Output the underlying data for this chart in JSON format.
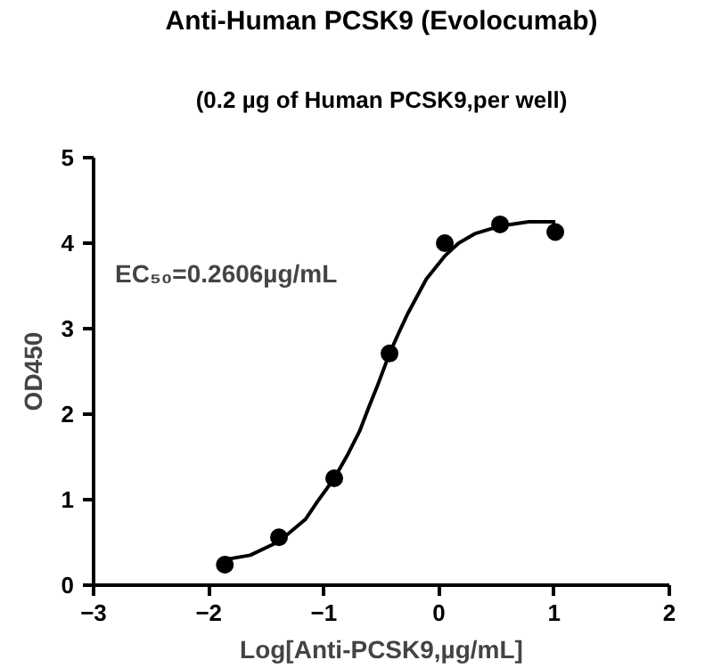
{
  "chart_data": {
    "type": "scatter",
    "title": "Anti-Human PCSK9 (Evolocumab)",
    "subtitle": "(0.2 µg of Human PCSK9,per well)",
    "xlabel": "Log[Anti-PCSK9,µg/mL]",
    "ylabel": "OD450",
    "annotations": [
      "EC₅₀=0.2606µg/mL"
    ],
    "xlim": [
      -3,
      2
    ],
    "xticks": [
      -3,
      -2,
      -1,
      0,
      1,
      2
    ],
    "ylim": [
      0,
      5
    ],
    "yticks": [
      0,
      1,
      2,
      3,
      4,
      5
    ],
    "grid": false,
    "series": [
      {
        "marker": "circle",
        "color": "#000000",
        "x": [
          -1.86,
          -1.39,
          -0.91,
          -0.43,
          0.05,
          0.53,
          1.01
        ],
        "values": [
          0.24,
          0.56,
          1.25,
          2.71,
          4.0,
          4.22,
          4.13
        ]
      },
      {
        "type": "line",
        "color": "#000000",
        "line_style": "solid",
        "x": [
          -1.86,
          -1.64,
          -1.39,
          -1.16,
          -1.06,
          -0.91,
          -0.8,
          -0.69,
          -0.61,
          -0.53,
          -0.43,
          -0.35,
          -0.27,
          -0.19,
          -0.11,
          0.05,
          0.17,
          0.31,
          0.53,
          0.78,
          1.01
        ],
        "values": [
          0.3,
          0.35,
          0.51,
          0.77,
          0.97,
          1.25,
          1.51,
          1.8,
          2.08,
          2.35,
          2.71,
          2.95,
          3.18,
          3.38,
          3.58,
          3.85,
          4.0,
          4.11,
          4.2,
          4.25,
          4.25
        ]
      }
    ]
  }
}
